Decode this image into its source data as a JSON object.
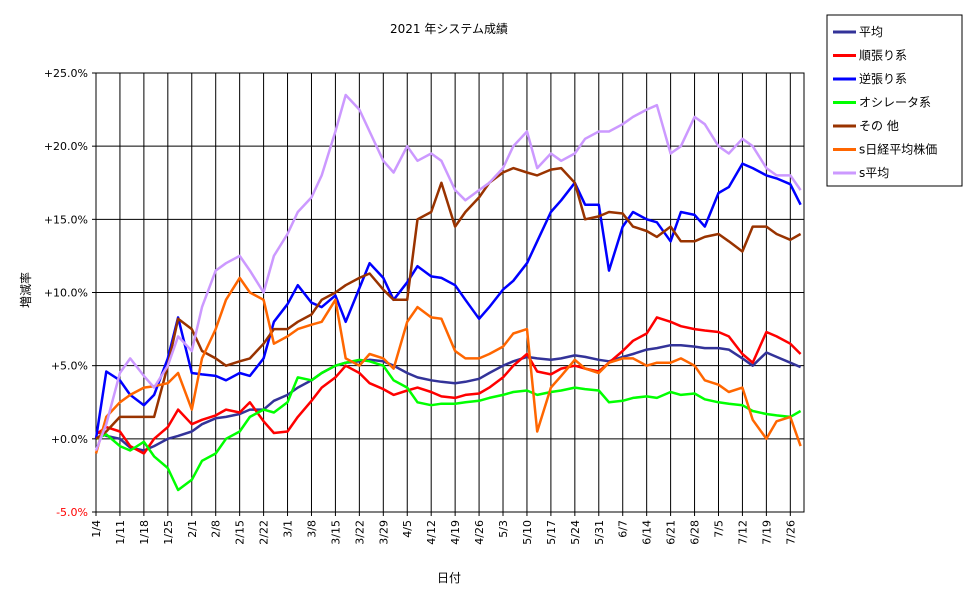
{
  "chart_data": {
    "type": "line",
    "title": "2021 年システム成績",
    "xlabel": "日付",
    "ylabel": "増減率",
    "ylim": [
      -5.0,
      25.0
    ],
    "y_tick_labels": [
      "+25.0%",
      "+20.0%",
      "+15.0%",
      "+10.0%",
      "+5.0%",
      "+0.0%",
      "-5.0%"
    ],
    "y_tick_values": [
      25,
      20,
      15,
      10,
      5,
      0,
      -5
    ],
    "x_tick_labels": [
      "1/4",
      "1/11",
      "1/18",
      "1/25",
      "2/1",
      "2/8",
      "2/15",
      "2/22",
      "3/1",
      "3/8",
      "3/15",
      "3/22",
      "3/29",
      "4/5",
      "4/12",
      "4/19",
      "4/26",
      "5/3",
      "5/10",
      "5/17",
      "5/24",
      "5/31",
      "6/7",
      "6/14",
      "6/21",
      "6/28",
      "7/5",
      "7/12",
      "7/19",
      "7/26"
    ],
    "x_days": [
      0,
      7,
      14,
      21,
      28,
      35,
      42,
      49,
      56,
      63,
      70,
      77,
      84,
      91,
      98,
      105,
      112,
      119,
      126,
      133,
      140,
      147,
      154,
      161,
      168,
      175,
      182,
      189,
      196,
      203
    ],
    "x_max_day": 207,
    "grid": true,
    "legend_position": "right",
    "series": [
      {
        "name": "平均",
        "color": "#333399",
        "x": [
          0,
          3,
          7,
          10,
          14,
          17,
          21,
          24,
          28,
          31,
          35,
          38,
          42,
          45,
          49,
          52,
          56,
          59,
          63,
          66,
          70,
          73,
          77,
          80,
          84,
          87,
          91,
          94,
          98,
          101,
          105,
          108,
          112,
          115,
          119,
          122,
          126,
          129,
          133,
          136,
          140,
          143,
          147,
          150,
          154,
          157,
          161,
          164,
          168,
          171,
          175,
          178,
          182,
          185,
          189,
          192,
          196,
          199,
          203,
          206
        ],
        "y": [
          0.5,
          0.2,
          0.0,
          -0.6,
          -0.8,
          -0.5,
          0.0,
          0.2,
          0.5,
          1.0,
          1.4,
          1.5,
          1.7,
          2.0,
          2.0,
          2.6,
          3.0,
          3.5,
          4.0,
          4.5,
          5.0,
          5.2,
          5.3,
          5.4,
          5.3,
          5.0,
          4.5,
          4.2,
          4.0,
          3.9,
          3.8,
          3.9,
          4.1,
          4.5,
          5.0,
          5.3,
          5.6,
          5.5,
          5.4,
          5.5,
          5.7,
          5.6,
          5.4,
          5.3,
          5.6,
          5.8,
          6.1,
          6.2,
          6.4,
          6.4,
          6.3,
          6.2,
          6.2,
          6.1,
          5.5,
          5.0,
          5.9,
          5.6,
          5.2,
          4.9
        ]
      },
      {
        "name": "順張り系",
        "color": "#ff0000",
        "x": [
          0,
          3,
          7,
          10,
          14,
          17,
          21,
          24,
          28,
          31,
          35,
          38,
          42,
          45,
          49,
          52,
          56,
          59,
          63,
          66,
          70,
          73,
          77,
          80,
          84,
          87,
          91,
          94,
          98,
          101,
          105,
          108,
          112,
          115,
          119,
          122,
          126,
          129,
          133,
          136,
          140,
          143,
          147,
          150,
          154,
          157,
          161,
          164,
          168,
          171,
          175,
          178,
          182,
          185,
          189,
          192,
          196,
          199,
          203,
          206
        ],
        "y": [
          0.3,
          0.8,
          0.5,
          -0.5,
          -1.0,
          0.0,
          0.8,
          2.0,
          1.0,
          1.3,
          1.6,
          2.0,
          1.8,
          2.5,
          1.2,
          0.4,
          0.5,
          1.5,
          2.6,
          3.5,
          4.2,
          5.0,
          4.5,
          3.8,
          3.4,
          3.0,
          3.3,
          3.5,
          3.2,
          2.9,
          2.8,
          3.0,
          3.1,
          3.5,
          4.2,
          5.0,
          5.8,
          4.6,
          4.4,
          4.8,
          5.0,
          4.8,
          4.6,
          5.2,
          6.0,
          6.7,
          7.2,
          8.3,
          8.0,
          7.7,
          7.5,
          7.4,
          7.3,
          7.0,
          5.8,
          5.2,
          7.3,
          7.0,
          6.5,
          5.8
        ]
      },
      {
        "name": "逆張り系",
        "color": "#0000ff",
        "x": [
          0,
          3,
          7,
          10,
          14,
          17,
          21,
          24,
          28,
          31,
          35,
          38,
          42,
          45,
          49,
          52,
          56,
          59,
          63,
          66,
          70,
          73,
          77,
          80,
          84,
          87,
          91,
          94,
          98,
          101,
          105,
          108,
          112,
          115,
          119,
          122,
          126,
          129,
          133,
          136,
          140,
          143,
          147,
          150,
          154,
          157,
          161,
          164,
          168,
          171,
          175,
          178,
          182,
          185,
          189,
          192,
          196,
          199,
          203,
          206
        ],
        "y": [
          0.0,
          4.6,
          4.0,
          3.0,
          2.3,
          3.0,
          5.5,
          8.3,
          4.5,
          4.4,
          4.3,
          4.0,
          4.5,
          4.3,
          5.5,
          8.0,
          9.2,
          10.5,
          9.3,
          9.0,
          9.8,
          8.0,
          10.3,
          12.0,
          11.0,
          9.5,
          10.7,
          11.8,
          11.1,
          11.0,
          10.5,
          9.5,
          8.2,
          9.0,
          10.2,
          10.8,
          12.0,
          13.5,
          15.5,
          16.3,
          17.5,
          16.0,
          16.0,
          11.5,
          14.5,
          15.5,
          15.0,
          14.8,
          13.5,
          15.5,
          15.3,
          14.5,
          16.8,
          17.2,
          18.8,
          18.5,
          18.0,
          17.8,
          17.4,
          16.0
        ]
      },
      {
        "name": "オシレータ系",
        "color": "#00ff00",
        "x": [
          0,
          3,
          7,
          10,
          14,
          17,
          21,
          24,
          28,
          31,
          35,
          38,
          42,
          45,
          49,
          52,
          56,
          59,
          63,
          66,
          70,
          73,
          77,
          80,
          84,
          87,
          91,
          94,
          98,
          101,
          105,
          108,
          112,
          115,
          119,
          122,
          126,
          129,
          133,
          136,
          140,
          143,
          147,
          150,
          154,
          157,
          161,
          164,
          168,
          171,
          175,
          178,
          182,
          185,
          189,
          192,
          196,
          199,
          203,
          206
        ],
        "y": [
          0.0,
          0.3,
          -0.5,
          -0.8,
          -0.2,
          -1.2,
          -2.0,
          -3.5,
          -2.8,
          -1.5,
          -1.0,
          0.0,
          0.5,
          1.5,
          2.0,
          1.8,
          2.5,
          4.2,
          4.0,
          4.5,
          5.0,
          5.2,
          5.4,
          5.3,
          5.0,
          4.0,
          3.5,
          2.5,
          2.3,
          2.4,
          2.4,
          2.5,
          2.6,
          2.8,
          3.0,
          3.2,
          3.3,
          3.0,
          3.2,
          3.3,
          3.5,
          3.4,
          3.3,
          2.5,
          2.6,
          2.8,
          2.9,
          2.8,
          3.2,
          3.0,
          3.1,
          2.7,
          2.5,
          2.4,
          2.3,
          1.9,
          1.7,
          1.6,
          1.5,
          1.9
        ]
      },
      {
        "name": "その 他",
        "color": "#993300",
        "x": [
          0,
          3,
          7,
          10,
          14,
          17,
          21,
          24,
          28,
          31,
          35,
          38,
          42,
          45,
          49,
          52,
          56,
          59,
          63,
          66,
          70,
          73,
          77,
          80,
          84,
          87,
          91,
          94,
          98,
          101,
          105,
          108,
          112,
          115,
          119,
          122,
          126,
          129,
          133,
          136,
          140,
          143,
          147,
          150,
          154,
          157,
          161,
          164,
          168,
          171,
          175,
          178,
          182,
          185,
          189,
          192,
          196,
          199,
          203,
          206
        ],
        "y": [
          0.0,
          0.5,
          1.5,
          1.5,
          1.5,
          1.5,
          5.0,
          8.2,
          7.5,
          6.0,
          5.5,
          5.0,
          5.3,
          5.5,
          6.5,
          7.5,
          7.5,
          8.0,
          8.5,
          9.5,
          10.0,
          10.5,
          11.0,
          11.3,
          10.2,
          9.5,
          9.5,
          15.0,
          15.5,
          17.5,
          14.5,
          15.5,
          16.5,
          17.5,
          18.2,
          18.5,
          18.2,
          18.0,
          18.4,
          18.5,
          17.5,
          15.0,
          15.2,
          15.5,
          15.4,
          14.5,
          14.2,
          13.8,
          14.5,
          13.5,
          13.5,
          13.8,
          14.0,
          13.5,
          12.8,
          14.5,
          14.5,
          14.0,
          13.6,
          14.0
        ]
      },
      {
        "name": "s日経平均株価",
        "color": "#ff6600",
        "x": [
          0,
          3,
          7,
          10,
          14,
          17,
          21,
          24,
          28,
          31,
          35,
          38,
          42,
          45,
          49,
          52,
          56,
          59,
          63,
          66,
          70,
          73,
          77,
          80,
          84,
          87,
          91,
          94,
          98,
          101,
          105,
          108,
          112,
          115,
          119,
          122,
          126,
          129,
          133,
          136,
          140,
          143,
          147,
          150,
          154,
          157,
          161,
          164,
          168,
          171,
          175,
          178,
          182,
          185,
          189,
          192,
          196,
          199,
          203,
          206
        ],
        "y": [
          -1.0,
          1.5,
          2.5,
          3.0,
          3.5,
          3.6,
          3.8,
          4.5,
          2.0,
          5.5,
          7.5,
          9.5,
          11.0,
          10.0,
          9.5,
          6.5,
          7.0,
          7.5,
          7.8,
          8.0,
          9.5,
          5.5,
          5.0,
          5.8,
          5.5,
          4.8,
          8.0,
          9.0,
          8.3,
          8.2,
          6.0,
          5.5,
          5.5,
          5.8,
          6.3,
          7.2,
          7.5,
          0.5,
          3.5,
          4.3,
          5.4,
          4.8,
          4.5,
          5.2,
          5.5,
          5.5,
          5.0,
          5.2,
          5.2,
          5.5,
          5.0,
          4.0,
          3.7,
          3.2,
          3.5,
          1.3,
          0.0,
          1.2,
          1.5,
          -0.5
        ]
      },
      {
        "name": "s平均",
        "color": "#cc99ff",
        "x": [
          0,
          3,
          7,
          10,
          14,
          17,
          21,
          24,
          28,
          31,
          35,
          38,
          42,
          45,
          49,
          52,
          56,
          59,
          63,
          66,
          70,
          73,
          77,
          80,
          84,
          87,
          91,
          94,
          98,
          101,
          105,
          108,
          112,
          115,
          119,
          122,
          126,
          129,
          133,
          136,
          140,
          143,
          147,
          150,
          154,
          157,
          161,
          164,
          168,
          171,
          175,
          178,
          182,
          185,
          189,
          192,
          196,
          199,
          203,
          206
        ],
        "y": [
          -0.8,
          1.0,
          4.5,
          5.5,
          4.3,
          3.5,
          5.0,
          7.0,
          6.0,
          9.0,
          11.5,
          12.0,
          12.5,
          11.5,
          10.0,
          12.5,
          14.0,
          15.5,
          16.5,
          18.0,
          21.0,
          23.5,
          22.5,
          21.0,
          19.0,
          18.2,
          20.0,
          19.0,
          19.5,
          19.0,
          17.0,
          16.3,
          17.0,
          17.5,
          18.5,
          20.0,
          21.0,
          18.5,
          19.5,
          19.0,
          19.5,
          20.5,
          21.0,
          21.0,
          21.5,
          22.0,
          22.5,
          22.8,
          19.5,
          20.0,
          22.0,
          21.5,
          20.0,
          19.5,
          20.5,
          20.0,
          18.5,
          18.0,
          18.0,
          17.0
        ]
      }
    ]
  }
}
